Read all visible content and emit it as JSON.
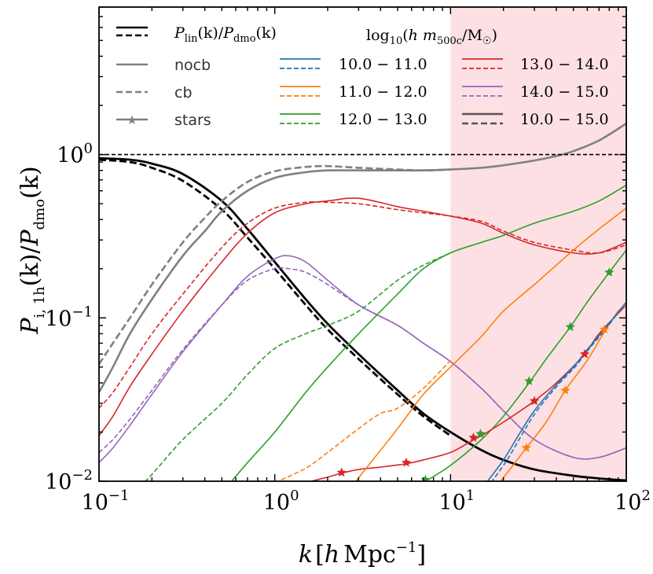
{
  "chart_data": {
    "type": "line",
    "xscale": "log",
    "yscale": "log",
    "xlim": [
      0.1,
      100
    ],
    "ylim": [
      0.01,
      8
    ],
    "xlabel": "k [h Mpc^-1]",
    "ylabel": "P_{i,1h}(k) / P_dmo(k)",
    "xlabel_parts": {
      "k": "k",
      "open": "[",
      "h": "h",
      "unit": "Mpc",
      "sup": "−1",
      "close": "]"
    },
    "ylabel_parts": {
      "P": "P",
      "sub": "i, 1h",
      "k": "(k)/",
      "P2": "P",
      "sub2": "dmo",
      "k2": "(k)"
    },
    "x_ticks": [
      {
        "value": 0.1,
        "base": "10",
        "exp": "−1"
      },
      {
        "value": 1,
        "base": "10",
        "exp": "0"
      },
      {
        "value": 10,
        "base": "10",
        "exp": "1"
      },
      {
        "value": 100,
        "base": "10",
        "exp": "2"
      }
    ],
    "y_ticks": [
      {
        "value": 0.01,
        "base": "10",
        "exp": "−2"
      },
      {
        "value": 0.1,
        "base": "10",
        "exp": "−1"
      },
      {
        "value": 1,
        "base": "10",
        "exp": "0"
      }
    ],
    "shaded_region": {
      "x_from": 10,
      "x_to": 100,
      "color": "#fde0e3"
    },
    "reference_line": {
      "y": 1.0,
      "style": "dashed"
    },
    "legend": {
      "style_entries": [
        {
          "label": "P_lin(k)/P_dmo(k)",
          "style": "lin"
        },
        {
          "label": "nocb",
          "style": "solid"
        },
        {
          "label": "cb",
          "style": "dashed"
        },
        {
          "label": "stars",
          "style": "star"
        }
      ],
      "mass_title": "log10(h m500c/M☉)",
      "mass_title_parts": {
        "log": "log",
        "sub10": "10",
        "open": "(",
        "hm": "h m",
        "sub": "500c",
        "mid": "/M",
        "sun": "☉",
        "close": ")"
      },
      "lin_label_parts": {
        "P": "P",
        "sub1": "lin",
        "k1": "(k)/",
        "P2": "P",
        "sub2": "dmo",
        "k2": "(k)"
      },
      "mass_bins": [
        {
          "label": "10.0 − 11.0",
          "color": "#1f77b4"
        },
        {
          "label": "11.0 − 12.0",
          "color": "#ff7f0e"
        },
        {
          "label": "12.0 − 13.0",
          "color": "#2ca02c"
        },
        {
          "label": "13.0 − 14.0",
          "color": "#d62728"
        },
        {
          "label": "14.0 − 15.0",
          "color": "#9467bd"
        },
        {
          "label": "10.0 − 15.0",
          "color": "#555555"
        }
      ]
    },
    "series": [
      {
        "name": "P_lin/P_dmo",
        "color": "#000000",
        "dash": false,
        "width": 2.8,
        "x": [
          0.1,
          0.15,
          0.2,
          0.3,
          0.5,
          0.7,
          1,
          1.5,
          2,
          3,
          5,
          7,
          10,
          15,
          20,
          30,
          50,
          70,
          100
        ],
        "y": [
          0.95,
          0.93,
          0.88,
          0.76,
          0.52,
          0.35,
          0.22,
          0.13,
          0.092,
          0.06,
          0.036,
          0.026,
          0.02,
          0.0155,
          0.0135,
          0.0118,
          0.0108,
          0.0104,
          0.0101
        ]
      },
      {
        "name": "P_lin/P_dmo (alt)",
        "color": "#000000",
        "dash": true,
        "width": 2.8,
        "x": [
          0.1,
          0.15,
          0.2,
          0.3,
          0.5,
          0.7,
          1,
          1.5,
          2,
          3,
          5,
          7,
          10
        ],
        "y": [
          0.93,
          0.9,
          0.83,
          0.69,
          0.46,
          0.31,
          0.2,
          0.12,
          0.085,
          0.056,
          0.034,
          0.025,
          0.019
        ]
      },
      {
        "name": "nocb 10.0-15.0",
        "color": "#808080",
        "dash": false,
        "width": 2.6,
        "x": [
          0.1,
          0.12,
          0.15,
          0.2,
          0.3,
          0.4,
          0.5,
          0.7,
          1,
          1.5,
          2,
          3,
          5,
          7,
          10,
          15,
          20,
          30,
          40,
          50,
          70,
          100
        ],
        "y": [
          0.035,
          0.05,
          0.08,
          0.13,
          0.24,
          0.34,
          0.45,
          0.6,
          0.72,
          0.78,
          0.8,
          0.8,
          0.8,
          0.8,
          0.81,
          0.83,
          0.86,
          0.92,
          0.98,
          1.05,
          1.22,
          1.55
        ]
      },
      {
        "name": "cb 10.0-15.0",
        "color": "#808080",
        "dash": true,
        "width": 2.6,
        "x": [
          0.1,
          0.12,
          0.15,
          0.2,
          0.3,
          0.4,
          0.5,
          0.7,
          1,
          1.5,
          2,
          3,
          5,
          7,
          10
        ],
        "y": [
          0.052,
          0.07,
          0.1,
          0.16,
          0.29,
          0.41,
          0.52,
          0.68,
          0.79,
          0.84,
          0.85,
          0.83,
          0.81,
          0.8,
          0.81
        ]
      },
      {
        "name": "nocb 13.0-14.0",
        "color": "#d62728",
        "dash": false,
        "width": 1.6,
        "x": [
          0.1,
          0.12,
          0.15,
          0.2,
          0.3,
          0.5,
          0.7,
          1,
          1.5,
          2,
          3,
          5,
          7,
          10,
          15,
          20,
          30,
          50,
          70,
          100
        ],
        "y": [
          0.019,
          0.025,
          0.038,
          0.06,
          0.11,
          0.22,
          0.33,
          0.44,
          0.5,
          0.52,
          0.54,
          0.48,
          0.45,
          0.42,
          0.38,
          0.33,
          0.28,
          0.25,
          0.25,
          0.29
        ]
      },
      {
        "name": "cb 13.0-14.0",
        "color": "#d62728",
        "dash": true,
        "width": 1.6,
        "x": [
          0.1,
          0.12,
          0.15,
          0.2,
          0.3,
          0.5,
          0.7,
          1,
          1.5,
          2,
          3,
          5,
          7,
          10,
          15,
          20,
          30,
          50,
          70,
          100
        ],
        "y": [
          0.028,
          0.035,
          0.05,
          0.08,
          0.14,
          0.27,
          0.38,
          0.47,
          0.51,
          0.51,
          0.5,
          0.46,
          0.44,
          0.42,
          0.39,
          0.34,
          0.29,
          0.26,
          0.25,
          0.28
        ]
      },
      {
        "name": "nocb 14.0-15.0",
        "color": "#9467bd",
        "dash": false,
        "width": 1.6,
        "x": [
          0.1,
          0.12,
          0.15,
          0.2,
          0.3,
          0.5,
          0.7,
          1,
          1.2,
          1.5,
          2,
          3,
          5,
          7,
          10,
          15,
          20,
          30,
          50,
          70,
          100
        ],
        "y": [
          0.013,
          0.016,
          0.022,
          0.034,
          0.062,
          0.12,
          0.18,
          0.23,
          0.24,
          0.22,
          0.17,
          0.12,
          0.09,
          0.07,
          0.054,
          0.037,
          0.027,
          0.018,
          0.014,
          0.014,
          0.016
        ]
      },
      {
        "name": "cb 14.0-15.0",
        "color": "#9467bd",
        "dash": true,
        "width": 1.6,
        "x": [
          0.1,
          0.12,
          0.15,
          0.2,
          0.3,
          0.5,
          0.7,
          1,
          1.2,
          1.5,
          2,
          3,
          5,
          7,
          10,
          15,
          20,
          30,
          50,
          70,
          100
        ],
        "y": [
          0.015,
          0.018,
          0.024,
          0.036,
          0.064,
          0.12,
          0.17,
          0.2,
          0.2,
          0.19,
          0.16,
          0.12,
          0.09,
          0.07,
          0.054,
          0.037,
          0.027,
          0.018,
          0.014,
          0.014,
          0.016
        ]
      },
      {
        "name": "nocb 12.0-13.0",
        "color": "#2ca02c",
        "dash": false,
        "width": 1.6,
        "x": [
          0.5,
          0.7,
          1,
          1.5,
          2,
          3,
          5,
          7,
          10,
          15,
          20,
          30,
          50,
          70,
          100
        ],
        "y": [
          0.0085,
          0.013,
          0.02,
          0.035,
          0.05,
          0.08,
          0.14,
          0.2,
          0.25,
          0.29,
          0.32,
          0.38,
          0.45,
          0.52,
          0.65
        ]
      },
      {
        "name": "cb 12.0-13.0",
        "color": "#2ca02c",
        "dash": true,
        "width": 1.6,
        "x": [
          0.15,
          0.2,
          0.3,
          0.5,
          0.7,
          1,
          1.5,
          2,
          3,
          5,
          7,
          10
        ],
        "y": [
          0.008,
          0.011,
          0.018,
          0.03,
          0.045,
          0.065,
          0.08,
          0.09,
          0.11,
          0.17,
          0.21,
          0.25
        ]
      },
      {
        "name": "stars 12.0-13.0",
        "color": "#2ca02c",
        "dash": false,
        "width": 1.6,
        "x": [
          7,
          10,
          15,
          20,
          28,
          35,
          48,
          60,
          80,
          100
        ],
        "y": [
          0.0098,
          0.0125,
          0.018,
          0.025,
          0.04,
          0.056,
          0.088,
          0.125,
          0.19,
          0.26
        ]
      },
      {
        "name": "stars 13.0-14.0",
        "color": "#d62728",
        "dash": false,
        "width": 1.6,
        "x": [
          1.5,
          2,
          2.4,
          3,
          4,
          5.6,
          7,
          10,
          13,
          15,
          20,
          25,
          30,
          40,
          58,
          70,
          100
        ],
        "y": [
          0.0098,
          0.0106,
          0.0112,
          0.0118,
          0.0122,
          0.0128,
          0.0135,
          0.015,
          0.0175,
          0.019,
          0.023,
          0.027,
          0.031,
          0.04,
          0.06,
          0.08,
          0.12
        ]
      },
      {
        "name": "nocb 11.0-12.0",
        "color": "#ff7f0e",
        "dash": false,
        "width": 1.6,
        "x": [
          2.8,
          3,
          5,
          7,
          10,
          15,
          20,
          30,
          50,
          70,
          100
        ],
        "y": [
          0.0095,
          0.0105,
          0.021,
          0.034,
          0.05,
          0.077,
          0.11,
          0.16,
          0.26,
          0.35,
          0.47
        ]
      },
      {
        "name": "cb 11.0-12.0",
        "color": "#ff7f0e",
        "dash": true,
        "width": 1.6,
        "x": [
          1,
          1.5,
          2,
          3,
          4,
          5,
          7,
          10
        ],
        "y": [
          0.0098,
          0.012,
          0.015,
          0.021,
          0.026,
          0.028,
          0.037,
          0.055
        ]
      },
      {
        "name": "stars 11.0-12.0",
        "color": "#ff7f0e",
        "dash": false,
        "width": 1.6,
        "x": [
          19,
          22,
          27,
          35,
          45,
          60,
          75,
          90,
          100
        ],
        "y": [
          0.0098,
          0.012,
          0.016,
          0.023,
          0.036,
          0.055,
          0.082,
          0.11,
          0.12
        ]
      },
      {
        "name": "stars 10.0-11.0",
        "color": "#1f77b4",
        "dash": false,
        "width": 1.6,
        "x": [
          16,
          20,
          25,
          30,
          40,
          50,
          60,
          75,
          100
        ],
        "y": [
          0.0098,
          0.0135,
          0.02,
          0.027,
          0.039,
          0.05,
          0.064,
          0.085,
          0.125
        ]
      },
      {
        "name": "stars 10.0-11.0 cb",
        "color": "#1f77b4",
        "dash": true,
        "width": 1.6,
        "x": [
          17,
          21,
          26,
          31,
          41,
          51,
          61,
          76,
          100
        ],
        "y": [
          0.0098,
          0.0135,
          0.02,
          0.027,
          0.039,
          0.05,
          0.064,
          0.085,
          0.125
        ]
      }
    ],
    "markers": [
      {
        "series": "stars 12.0-13.0",
        "color": "#2ca02c",
        "x": [
          7.2,
          14.8,
          28,
          48,
          80
        ],
        "y": [
          0.0102,
          0.0195,
          0.041,
          0.088,
          0.19
        ]
      },
      {
        "series": "stars 13.0-14.0",
        "color": "#d62728",
        "x": [
          2.4,
          5.6,
          13.5,
          30,
          58
        ],
        "y": [
          0.0113,
          0.013,
          0.0185,
          0.031,
          0.06
        ]
      },
      {
        "series": "stars 11.0-12.0",
        "color": "#ff7f0e",
        "x": [
          27,
          45,
          75
        ],
        "y": [
          0.016,
          0.036,
          0.085
        ]
      }
    ]
  }
}
